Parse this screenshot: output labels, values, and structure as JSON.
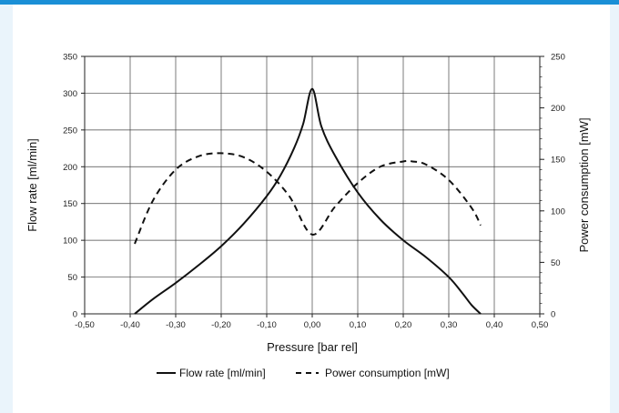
{
  "chart_data": {
    "type": "line",
    "xlabel": "Pressure [bar rel]",
    "ylabel": "Flow rate [ml/min]",
    "y2label": "Power consumption [mW]",
    "xlim": [
      -0.5,
      0.5
    ],
    "ylim": [
      0,
      350
    ],
    "y2lim": [
      0,
      250
    ],
    "x_ticks": [
      "-0,50",
      "-0,40",
      "-0,30",
      "-0,20",
      "-0,10",
      "0,00",
      "0,10",
      "0,20",
      "0,30",
      "0,40",
      "0,50"
    ],
    "y_ticks": [
      "0",
      "50",
      "100",
      "150",
      "200",
      "250",
      "300",
      "350"
    ],
    "y2_ticks": [
      "0",
      "50",
      "100",
      "150",
      "200",
      "250"
    ],
    "grid": true,
    "legend_position": "bottom",
    "series": [
      {
        "name": "Flow rate [ml/min]",
        "axis": "left",
        "style": "solid",
        "color": "#111111",
        "x": [
          -0.39,
          -0.35,
          -0.3,
          -0.25,
          -0.2,
          -0.15,
          -0.1,
          -0.07,
          -0.04,
          -0.02,
          0.0,
          0.02,
          0.05,
          0.1,
          0.15,
          0.2,
          0.25,
          0.3,
          0.33,
          0.35,
          0.37
        ],
        "y": [
          0,
          20,
          42,
          66,
          92,
          123,
          160,
          188,
          225,
          258,
          306,
          255,
          215,
          165,
          128,
          100,
          77,
          50,
          28,
          12,
          0
        ]
      },
      {
        "name": "Power consumption [mW]",
        "axis": "right",
        "style": "dashed",
        "color": "#111111",
        "x": [
          -0.39,
          -0.35,
          -0.3,
          -0.25,
          -0.2,
          -0.15,
          -0.1,
          -0.05,
          0.0,
          0.05,
          0.1,
          0.15,
          0.2,
          0.22,
          0.25,
          0.3,
          0.35,
          0.37
        ],
        "y": [
          68,
          110,
          140,
          153,
          156,
          152,
          138,
          114,
          77,
          104,
          127,
          143,
          148,
          148,
          145,
          130,
          103,
          86
        ]
      }
    ]
  }
}
